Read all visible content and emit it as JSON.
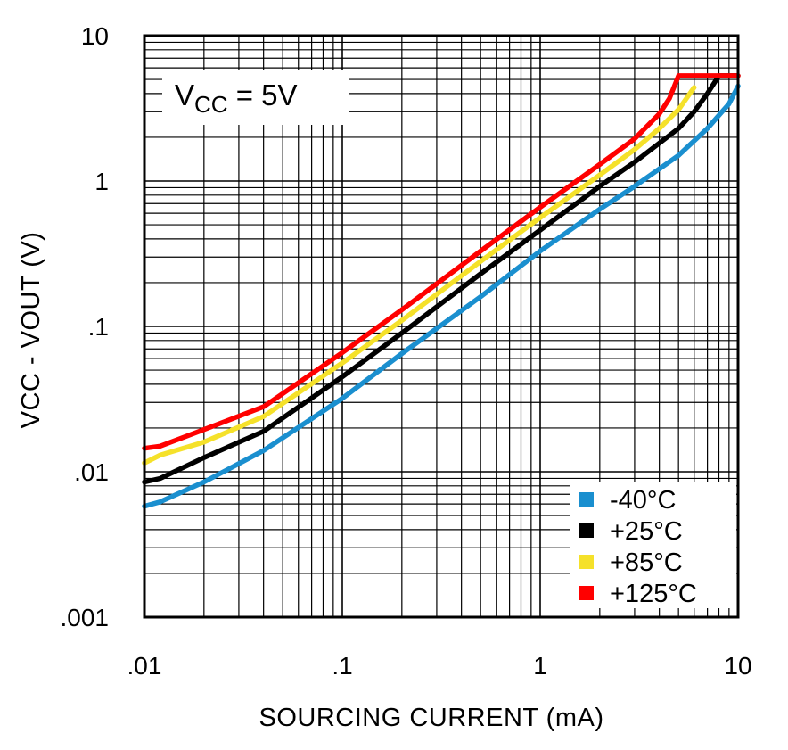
{
  "chart_data": {
    "type": "line",
    "title": "",
    "xlabel": "SOURCING CURRENT (mA)",
    "ylabel": "VCC - VOUT (V)",
    "x_scale": "log",
    "y_scale": "log",
    "xlim": [
      0.01,
      10
    ],
    "ylim": [
      0.001,
      10
    ],
    "grid": true,
    "x_ticks": [
      0.01,
      0.1,
      1,
      10
    ],
    "x_tick_labels": [
      ".01",
      ".1",
      "1",
      "10"
    ],
    "y_ticks": [
      0.001,
      0.01,
      0.1,
      1,
      10
    ],
    "y_tick_labels": [
      ".001",
      ".01",
      ".1",
      "1",
      "10"
    ],
    "annotation": {
      "main": "V",
      "sub": "CC",
      "rest": " = 5V"
    },
    "legend_position": "bottom-right",
    "series": [
      {
        "name": "-40°C",
        "color": "#1a8fcf",
        "x": [
          0.01,
          0.012,
          0.02,
          0.04,
          0.1,
          0.2,
          0.5,
          1,
          2,
          3,
          5,
          7,
          9,
          10
        ],
        "y": [
          0.0058,
          0.0062,
          0.0085,
          0.014,
          0.032,
          0.065,
          0.16,
          0.33,
          0.64,
          0.92,
          1.5,
          2.3,
          3.4,
          4.5
        ]
      },
      {
        "name": "+25°C",
        "color": "#000000",
        "x": [
          0.01,
          0.012,
          0.02,
          0.04,
          0.1,
          0.2,
          0.5,
          1,
          2,
          3,
          5,
          6,
          7,
          8,
          9,
          10
        ],
        "y": [
          0.0085,
          0.009,
          0.0125,
          0.019,
          0.045,
          0.09,
          0.23,
          0.46,
          0.92,
          1.35,
          2.3,
          3.0,
          4.0,
          5.3,
          5.3,
          5.3
        ]
      },
      {
        "name": "+85°C",
        "color": "#f5e12a",
        "x": [
          0.01,
          0.012,
          0.02,
          0.04,
          0.1,
          0.2,
          0.5,
          1,
          2,
          3,
          4,
          5,
          6
        ],
        "y": [
          0.0115,
          0.013,
          0.016,
          0.024,
          0.056,
          0.11,
          0.28,
          0.56,
          1.1,
          1.65,
          2.3,
          3.1,
          4.4
        ]
      },
      {
        "name": "+125°C",
        "color": "#ff0000",
        "x": [
          0.01,
          0.012,
          0.02,
          0.04,
          0.1,
          0.2,
          0.5,
          1,
          2,
          3,
          4,
          4.5,
          5,
          6,
          8,
          10
        ],
        "y": [
          0.0145,
          0.015,
          0.0195,
          0.028,
          0.066,
          0.13,
          0.33,
          0.66,
          1.3,
          1.95,
          2.9,
          3.7,
          5.3,
          5.3,
          5.3,
          5.3
        ]
      }
    ]
  }
}
